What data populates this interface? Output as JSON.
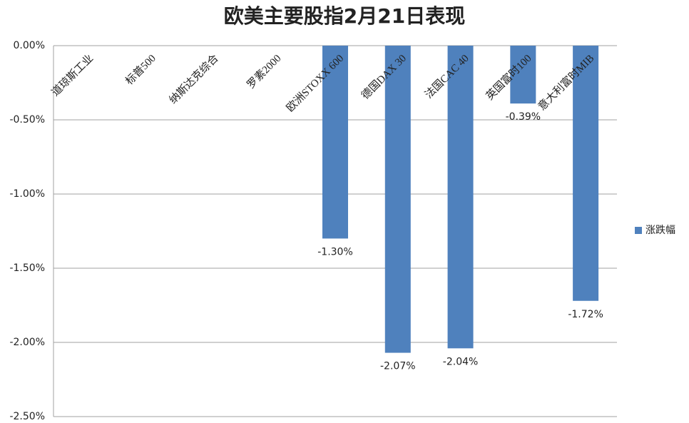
{
  "chart_data": {
    "type": "bar",
    "title": "欧美主要股指2月21日表现",
    "categories": [
      "道琼斯工业",
      "标普500",
      "纳斯达克综合",
      "罗素2000",
      "欧洲STOXX 600",
      "德国DAX 30",
      "法国CAC 40",
      "英国富时100",
      "意大利富时MIB"
    ],
    "series": [
      {
        "name": "涨跌幅",
        "color": "#4f81bd",
        "values": [
          null,
          null,
          null,
          null,
          -1.3,
          -2.07,
          -2.04,
          -0.39,
          -1.72
        ],
        "value_labels": [
          null,
          null,
          null,
          null,
          "-1.30%",
          "-2.07%",
          "-2.04%",
          "-0.39%",
          "-1.72%"
        ]
      }
    ],
    "ylim": [
      -2.5,
      0
    ],
    "yticks": [
      {
        "value": 0,
        "label": "0.00%"
      },
      {
        "value": -0.5,
        "label": "-0.50%"
      },
      {
        "value": -1,
        "label": "-1.00%"
      },
      {
        "value": -1.5,
        "label": "-1.50%"
      },
      {
        "value": -2,
        "label": "-2.00%"
      },
      {
        "value": -2.5,
        "label": "-2.50%"
      }
    ],
    "grid": true,
    "legend": "right"
  }
}
